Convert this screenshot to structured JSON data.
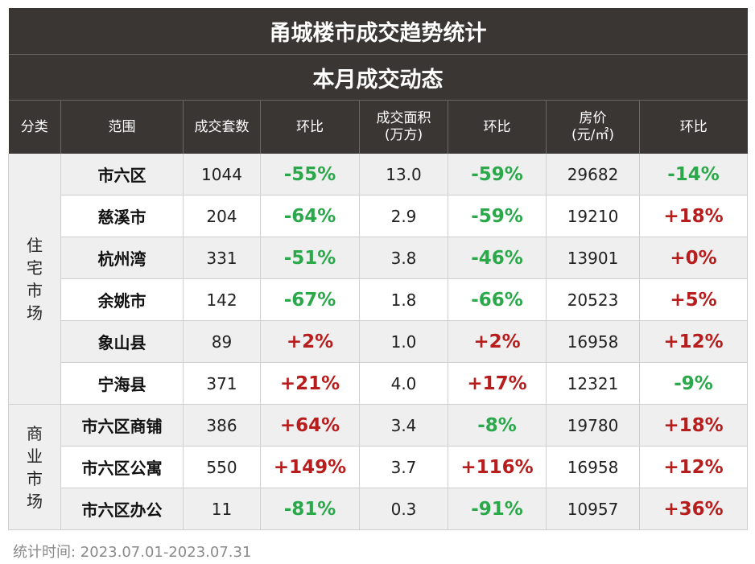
{
  "title": "甬城楼市成交趋势统计",
  "subtitle": "本月成交动态",
  "headers": {
    "category": "分类",
    "region": "范围",
    "units": "成交套数",
    "units_mom": "环比",
    "area_l1": "成交面积",
    "area_l2": "(万方)",
    "area_mom": "环比",
    "price_l1": "房价",
    "price_l2": "(元/㎡)",
    "price_mom": "环比"
  },
  "categories": {
    "residential": [
      "住",
      "宅",
      "市",
      "场"
    ],
    "commercial": [
      "商",
      "业",
      "市",
      "场"
    ]
  },
  "rows": [
    {
      "region": "市六区",
      "units": "1044",
      "units_mom": "-55%",
      "area": "13.0",
      "area_mom": "-59%",
      "price": "29682",
      "price_mom": "-14%"
    },
    {
      "region": "慈溪市",
      "units": "204",
      "units_mom": "-64%",
      "area": "2.9",
      "area_mom": "-59%",
      "price": "19210",
      "price_mom": "+18%"
    },
    {
      "region": "杭州湾",
      "units": "331",
      "units_mom": "-51%",
      "area": "3.8",
      "area_mom": "-46%",
      "price": "13901",
      "price_mom": "+0%"
    },
    {
      "region": "余姚市",
      "units": "142",
      "units_mom": "-67%",
      "area": "1.8",
      "area_mom": "-66%",
      "price": "20523",
      "price_mom": "+5%"
    },
    {
      "region": "象山县",
      "units": "89",
      "units_mom": "+2%",
      "area": "1.0",
      "area_mom": "+2%",
      "price": "16958",
      "price_mom": "+12%"
    },
    {
      "region": "宁海县",
      "units": "371",
      "units_mom": "+21%",
      "area": "4.0",
      "area_mom": "+17%",
      "price": "12321",
      "price_mom": "-9%"
    },
    {
      "region": "市六区商铺",
      "units": "386",
      "units_mom": "+64%",
      "area": "3.4",
      "area_mom": "-8%",
      "price": "19780",
      "price_mom": "+18%"
    },
    {
      "region": "市六区公寓",
      "units": "550",
      "units_mom": "+149%",
      "area": "3.7",
      "area_mom": "+116%",
      "price": "16958",
      "price_mom": "+12%"
    },
    {
      "region": "市六区办公",
      "units": "11",
      "units_mom": "-81%",
      "area": "0.3",
      "area_mom": "-91%",
      "price": "10957",
      "price_mom": "+36%"
    }
  ],
  "colors": {
    "header_bg": "#3a3634",
    "negative": "#2aa84a",
    "positive": "#b81d1d",
    "alt_row": "#efefef"
  },
  "footer_note": "统计时间:  2023.07.01-2023.07.31"
}
